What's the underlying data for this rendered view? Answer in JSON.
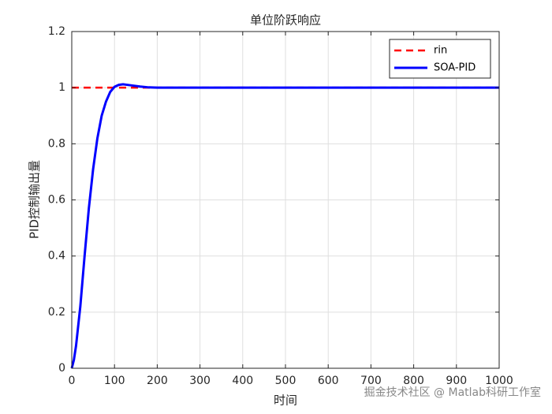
{
  "chart_data": {
    "type": "line",
    "title": "单位阶跃响应",
    "x_label": "时间",
    "y_label": "PID控制输出量",
    "x": [
      0,
      5,
      10,
      20,
      30,
      40,
      50,
      60,
      70,
      80,
      90,
      100,
      110,
      120,
      140,
      160,
      180,
      200,
      300,
      400,
      500,
      600,
      700,
      800,
      900,
      1000
    ],
    "series": [
      {
        "name": "rin",
        "color": "#ff0000",
        "dash": true,
        "values": [
          1,
          1,
          1,
          1,
          1,
          1,
          1,
          1,
          1,
          1,
          1,
          1,
          1,
          1,
          1,
          1,
          1,
          1,
          1,
          1,
          1,
          1,
          1,
          1,
          1,
          1
        ]
      },
      {
        "name": "SOA-PID",
        "color": "#0000ff",
        "dash": false,
        "values": [
          0,
          0.03,
          0.08,
          0.22,
          0.4,
          0.57,
          0.71,
          0.82,
          0.9,
          0.95,
          0.985,
          1.003,
          1.01,
          1.012,
          1.008,
          1.004,
          1.001,
          1,
          1,
          1,
          1,
          1,
          1,
          1,
          1,
          1
        ]
      }
    ],
    "xlim": [
      0,
      1000
    ],
    "xticks": [
      0,
      100,
      200,
      300,
      400,
      500,
      600,
      700,
      800,
      900,
      1000
    ],
    "ylim": [
      0,
      1.2
    ],
    "yticks": [
      0,
      0.2,
      0.4,
      0.6,
      0.8,
      1,
      1.2
    ],
    "grid": true,
    "legend": "top-right",
    "watermark": "掘金技术社区 @ Matlab科研工作室"
  }
}
